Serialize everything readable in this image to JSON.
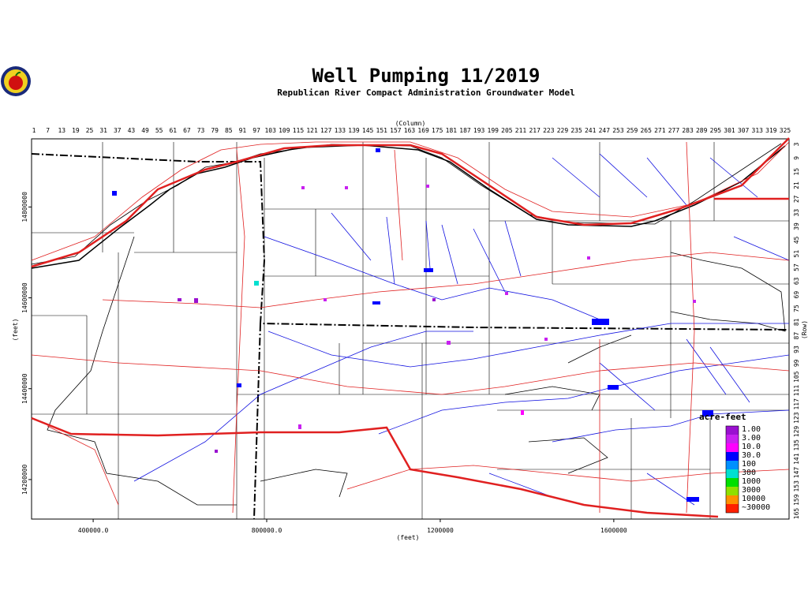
{
  "map": {
    "title": "Well Pumping 11/2019",
    "subtitle": "Republican River Compact Administration Groundwater Model",
    "column_label": "(Column)",
    "row_label": "(Row)",
    "x_label": "(feet)",
    "y_label": "(feet)",
    "columns": [
      1,
      7,
      13,
      19,
      25,
      31,
      37,
      43,
      49,
      55,
      61,
      67,
      73,
      79,
      85,
      91,
      97,
      103,
      109,
      115,
      121,
      127,
      133,
      139,
      145,
      151,
      157,
      163,
      169,
      175,
      181,
      187,
      193,
      199,
      205,
      211,
      217,
      223,
      229,
      235,
      241,
      247,
      253,
      259,
      265,
      271,
      277,
      283,
      289,
      295,
      301,
      307,
      313,
      319,
      325
    ],
    "rows": [
      3,
      9,
      15,
      21,
      27,
      33,
      39,
      45,
      51,
      57,
      63,
      69,
      75,
      81,
      87,
      93,
      99,
      105,
      111,
      117,
      123,
      129,
      135,
      141,
      147,
      153,
      159,
      165
    ],
    "xlim": [
      258000,
      2004000
    ],
    "xticks": [
      {
        "value": 400000,
        "label": "400000.0"
      },
      {
        "value": 800000,
        "label": "800000.0"
      },
      1200000,
      1600000
    ],
    "ylim": [
      14113000,
      14950000
    ],
    "yticks": [
      14800000,
      14600000,
      14400000,
      14200000
    ],
    "legend": {
      "title": "acre-feet",
      "entries": [
        {
          "label": "1.00",
          "color": "#9a10d0"
        },
        {
          "label": "3.00",
          "color": "#c820f0"
        },
        {
          "label": "10.0",
          "color": "#ff00ff"
        },
        {
          "label": "30.0",
          "color": "#0000ff"
        },
        {
          "label": "100",
          "color": "#0090ff"
        },
        {
          "label": "300",
          "color": "#00e0d0"
        },
        {
          "label": "1000",
          "color": "#00e000"
        },
        {
          "label": "3000",
          "color": "#90e000"
        },
        {
          "label": "10000",
          "color": "#ff9000"
        },
        {
          "label": "~30000",
          "color": "#ff2000"
        }
      ]
    }
  }
}
